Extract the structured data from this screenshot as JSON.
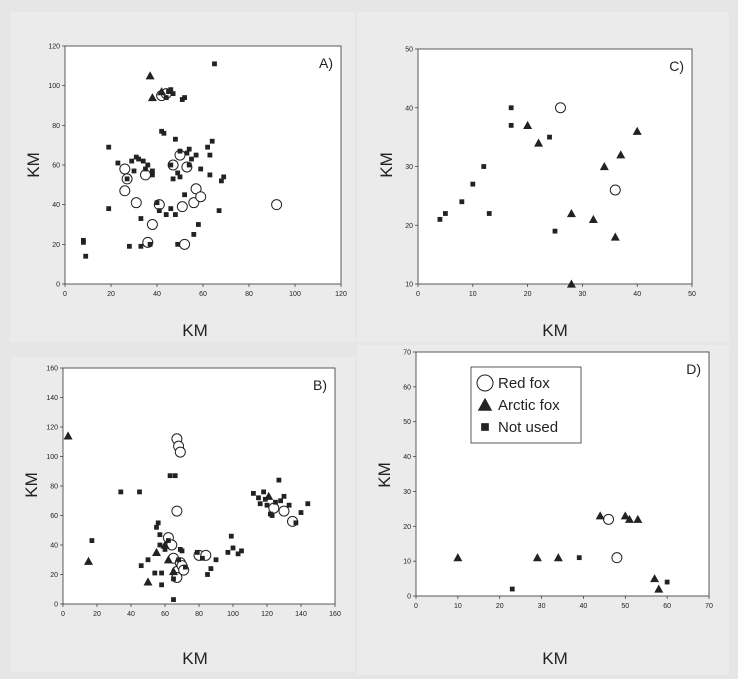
{
  "figure": {
    "legend": {
      "entries": [
        {
          "label": "Red fox",
          "marker": "circle"
        },
        {
          "label": "Arctic fox",
          "marker": "triangle"
        },
        {
          "label": "Not used",
          "marker": "square"
        }
      ],
      "placement": "inside panel D, top-left"
    },
    "colors": {
      "background": "#e6e6e6",
      "plot_area": "#ffffff",
      "markers": "#222222"
    }
  },
  "chart_data": [
    {
      "panel": "A)",
      "type": "scatter",
      "xlabel": "KM",
      "ylabel": "KM",
      "xlim": [
        0,
        120
      ],
      "ylim": [
        0,
        120
      ],
      "xticks": [
        0,
        20,
        40,
        60,
        80,
        100,
        120
      ],
      "yticks": [
        0,
        20,
        40,
        60,
        80,
        100,
        120
      ],
      "grid": false,
      "series": [
        {
          "name": "Red fox",
          "marker": "circle",
          "points": [
            [
              26,
              58
            ],
            [
              27,
              53
            ],
            [
              26,
              47
            ],
            [
              31,
              41
            ],
            [
              35,
              55
            ],
            [
              36,
              21
            ],
            [
              38,
              30
            ],
            [
              41,
              40
            ],
            [
              42,
              95
            ],
            [
              44,
              96
            ],
            [
              47,
              60
            ],
            [
              50,
              65
            ],
            [
              51,
              39
            ],
            [
              52,
              20
            ],
            [
              53,
              59
            ],
            [
              56,
              41
            ],
            [
              57,
              48
            ],
            [
              59,
              44
            ],
            [
              92,
              40
            ]
          ]
        },
        {
          "name": "Arctic fox",
          "marker": "triangle",
          "points": [
            [
              37,
              105
            ],
            [
              38,
              94
            ],
            [
              42,
              97
            ]
          ]
        },
        {
          "name": "Not used",
          "marker": "square",
          "points": [
            [
              8,
              21
            ],
            [
              9,
              14
            ],
            [
              8,
              22
            ],
            [
              19,
              69
            ],
            [
              19,
              38
            ],
            [
              23,
              61
            ],
            [
              27,
              53
            ],
            [
              28,
              19
            ],
            [
              29,
              62
            ],
            [
              30,
              57
            ],
            [
              31,
              64
            ],
            [
              32,
              63
            ],
            [
              33,
              19
            ],
            [
              33,
              33
            ],
            [
              34,
              62
            ],
            [
              35,
              58
            ],
            [
              36,
              60
            ],
            [
              37,
              20
            ],
            [
              38,
              55
            ],
            [
              38,
              57
            ],
            [
              40,
              41
            ],
            [
              41,
              37
            ],
            [
              42,
              77
            ],
            [
              43,
              76
            ],
            [
              44,
              94
            ],
            [
              44,
              35
            ],
            [
              45,
              97
            ],
            [
              46,
              98
            ],
            [
              46,
              60
            ],
            [
              46,
              38
            ],
            [
              47,
              53
            ],
            [
              47,
              96
            ],
            [
              48,
              35
            ],
            [
              48,
              73
            ],
            [
              49,
              20
            ],
            [
              49,
              56
            ],
            [
              50,
              54
            ],
            [
              50,
              67
            ],
            [
              51,
              93
            ],
            [
              52,
              94
            ],
            [
              52,
              45
            ],
            [
              53,
              66
            ],
            [
              54,
              68
            ],
            [
              54,
              60
            ],
            [
              55,
              63
            ],
            [
              56,
              25
            ],
            [
              57,
              65
            ],
            [
              58,
              30
            ],
            [
              59,
              58
            ],
            [
              62,
              69
            ],
            [
              63,
              55
            ],
            [
              63,
              65
            ],
            [
              64,
              72
            ],
            [
              65,
              111
            ],
            [
              67,
              37
            ],
            [
              68,
              52
            ],
            [
              69,
              54
            ]
          ]
        }
      ]
    },
    {
      "panel": "B)",
      "type": "scatter",
      "xlabel": "KM",
      "ylabel": "KM",
      "xlim": [
        0,
        160
      ],
      "ylim": [
        0,
        160
      ],
      "xticks": [
        0,
        20,
        40,
        60,
        80,
        100,
        120,
        140,
        160
      ],
      "yticks": [
        0,
        20,
        40,
        60,
        80,
        100,
        120,
        140,
        160
      ],
      "grid": false,
      "series": [
        {
          "name": "Red fox",
          "marker": "circle",
          "points": [
            [
              67,
              112
            ],
            [
              68,
              107
            ],
            [
              69,
              103
            ],
            [
              67,
              63
            ],
            [
              62,
              45
            ],
            [
              64,
              40
            ],
            [
              65,
              31
            ],
            [
              67,
              22
            ],
            [
              67,
              18
            ],
            [
              69,
              28
            ],
            [
              70,
              26
            ],
            [
              71,
              23
            ],
            [
              80,
              33
            ],
            [
              84,
              33
            ],
            [
              124,
              65
            ],
            [
              130,
              63
            ],
            [
              135,
              56
            ]
          ]
        },
        {
          "name": "Arctic fox",
          "marker": "triangle",
          "points": [
            [
              3,
              114
            ],
            [
              15,
              29
            ],
            [
              50,
              15
            ],
            [
              55,
              35
            ],
            [
              60,
              40
            ],
            [
              62,
              30
            ],
            [
              65,
              22
            ],
            [
              121,
              73
            ]
          ]
        },
        {
          "name": "Not used",
          "marker": "square",
          "points": [
            [
              17,
              43
            ],
            [
              34,
              76
            ],
            [
              45,
              76
            ],
            [
              46,
              26
            ],
            [
              50,
              30
            ],
            [
              54,
              21
            ],
            [
              55,
              52
            ],
            [
              56,
              55
            ],
            [
              57,
              47
            ],
            [
              57,
              40
            ],
            [
              58,
              21
            ],
            [
              58,
              13
            ],
            [
              60,
              37
            ],
            [
              62,
              43
            ],
            [
              63,
              87
            ],
            [
              65,
              17
            ],
            [
              65,
              3
            ],
            [
              66,
              87
            ],
            [
              68,
              30
            ],
            [
              69,
              37
            ],
            [
              70,
              36
            ],
            [
              72,
              25
            ],
            [
              79,
              35
            ],
            [
              82,
              31
            ],
            [
              85,
              20
            ],
            [
              87,
              24
            ],
            [
              90,
              30
            ],
            [
              97,
              35
            ],
            [
              99,
              46
            ],
            [
              100,
              38
            ],
            [
              103,
              34
            ],
            [
              105,
              36
            ],
            [
              112,
              75
            ],
            [
              115,
              72
            ],
            [
              116,
              68
            ],
            [
              118,
              76
            ],
            [
              119,
              71
            ],
            [
              120,
              67
            ],
            [
              122,
              61
            ],
            [
              123,
              60
            ],
            [
              125,
              69
            ],
            [
              127,
              84
            ],
            [
              128,
              70
            ],
            [
              130,
              73
            ],
            [
              133,
              67
            ],
            [
              137,
              55
            ],
            [
              140,
              62
            ],
            [
              144,
              68
            ]
          ]
        }
      ]
    },
    {
      "panel": "C)",
      "type": "scatter",
      "xlabel": "KM",
      "ylabel": "KM",
      "xlim": [
        0,
        50
      ],
      "ylim": [
        10,
        50
      ],
      "xticks": [
        0,
        10,
        20,
        30,
        40,
        50
      ],
      "yticks": [
        10,
        20,
        30,
        40,
        50
      ],
      "grid": false,
      "series": [
        {
          "name": "Red fox",
          "marker": "circle",
          "points": [
            [
              26,
              40
            ],
            [
              36,
              26
            ]
          ]
        },
        {
          "name": "Arctic fox",
          "marker": "triangle",
          "points": [
            [
              20,
              37
            ],
            [
              22,
              34
            ],
            [
              28,
              22
            ],
            [
              28,
              10
            ],
            [
              32,
              21
            ],
            [
              34,
              30
            ],
            [
              36,
              18
            ],
            [
              37,
              32
            ],
            [
              40,
              36
            ]
          ]
        },
        {
          "name": "Not used",
          "marker": "square",
          "points": [
            [
              4,
              21
            ],
            [
              5,
              22
            ],
            [
              8,
              24
            ],
            [
              10,
              27
            ],
            [
              12,
              30
            ],
            [
              13,
              22
            ],
            [
              17,
              40
            ],
            [
              17,
              37
            ],
            [
              24,
              35
            ],
            [
              25,
              19
            ]
          ]
        }
      ]
    },
    {
      "panel": "D)",
      "type": "scatter",
      "xlabel": "KM",
      "ylabel": "KM",
      "xlim": [
        0,
        70
      ],
      "ylim": [
        0,
        70
      ],
      "xticks": [
        0,
        10,
        20,
        30,
        40,
        50,
        60,
        70
      ],
      "yticks": [
        0,
        10,
        20,
        30,
        40,
        50,
        60,
        70
      ],
      "grid": false,
      "series": [
        {
          "name": "Red fox",
          "marker": "circle",
          "points": [
            [
              46,
              22
            ],
            [
              48,
              11
            ]
          ]
        },
        {
          "name": "Arctic fox",
          "marker": "triangle",
          "points": [
            [
              10,
              11
            ],
            [
              29,
              11
            ],
            [
              34,
              11
            ],
            [
              44,
              23
            ],
            [
              50,
              23
            ],
            [
              51,
              22
            ],
            [
              53,
              22
            ],
            [
              57,
              5
            ],
            [
              58,
              2
            ]
          ]
        },
        {
          "name": "Not used",
          "marker": "square",
          "points": [
            [
              23,
              2
            ],
            [
              39,
              11
            ],
            [
              60,
              4
            ]
          ]
        }
      ]
    }
  ]
}
